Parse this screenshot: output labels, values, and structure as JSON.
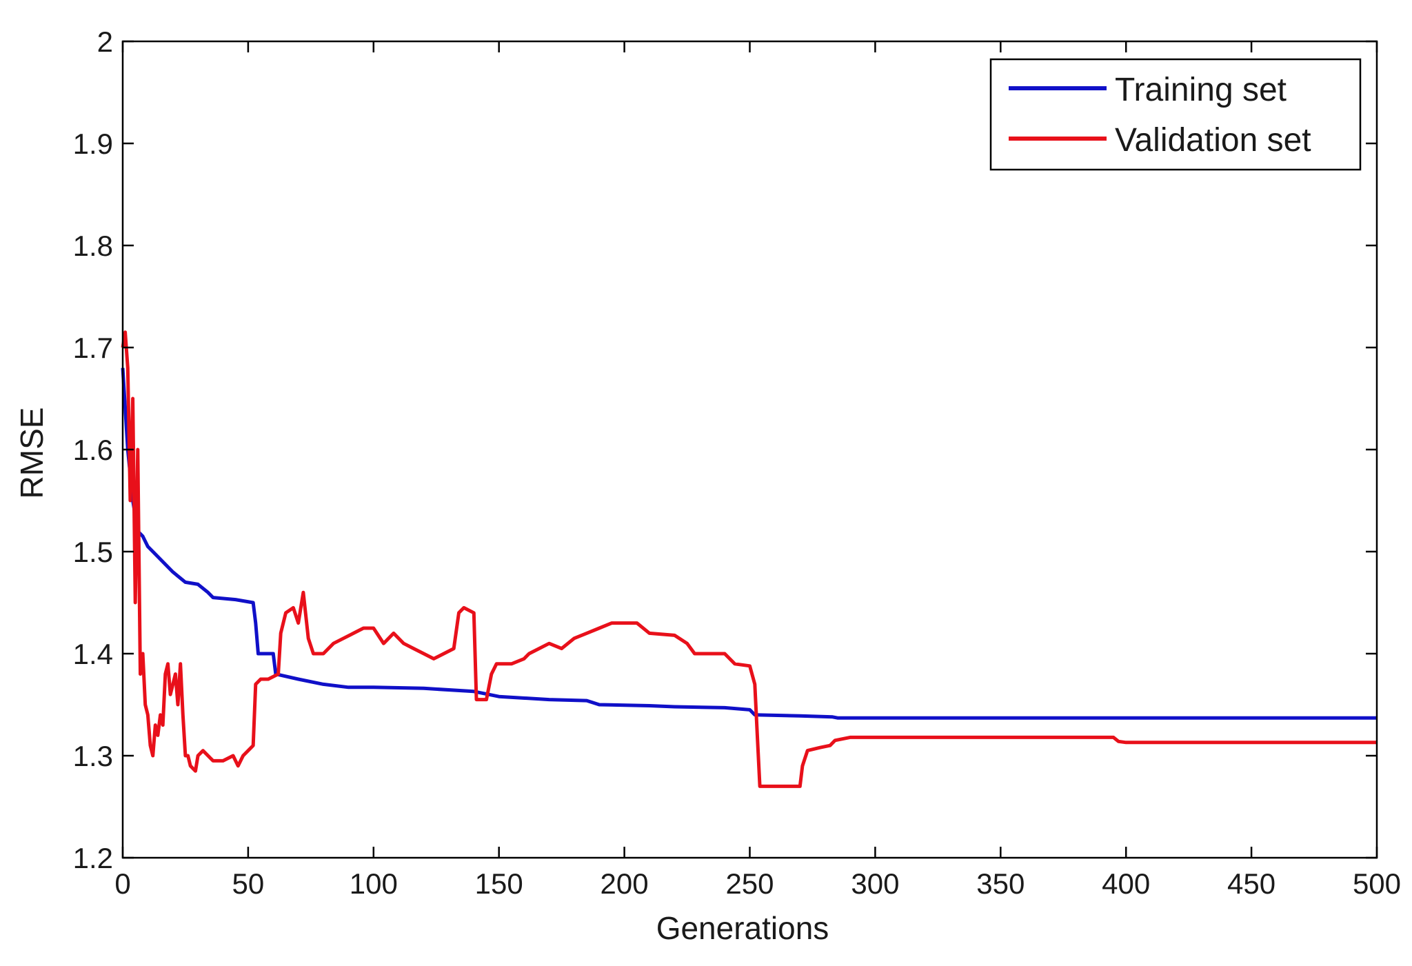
{
  "chart_data": {
    "type": "line",
    "title": "",
    "xlabel": "Generations",
    "ylabel": "RMSE",
    "xlim": [
      0,
      500
    ],
    "ylim": [
      1.2,
      2.0
    ],
    "xticks": [
      0,
      50,
      100,
      150,
      200,
      250,
      300,
      350,
      400,
      450,
      500
    ],
    "xtick_labels": [
      "0",
      "50",
      "100",
      "150",
      "200",
      "250",
      "300",
      "350",
      "400",
      "450",
      "500"
    ],
    "yticks": [
      1.2,
      1.3,
      1.4,
      1.5,
      1.6,
      1.7,
      1.8,
      1.9,
      2.0
    ],
    "ytick_labels": [
      "1.2",
      "1.3",
      "1.4",
      "1.5",
      "1.6",
      "1.7",
      "1.8",
      "1.9",
      "2"
    ],
    "grid": false,
    "legend_position": "top-right",
    "series": [
      {
        "name": "Training set",
        "color": "#1010c8",
        "points": [
          [
            0,
            1.68
          ],
          [
            2,
            1.6
          ],
          [
            4,
            1.55
          ],
          [
            6,
            1.52
          ],
          [
            8,
            1.515
          ],
          [
            10,
            1.505
          ],
          [
            12,
            1.5
          ],
          [
            16,
            1.49
          ],
          [
            20,
            1.48
          ],
          [
            25,
            1.47
          ],
          [
            30,
            1.468
          ],
          [
            34,
            1.46
          ],
          [
            36,
            1.455
          ],
          [
            45,
            1.453
          ],
          [
            52,
            1.45
          ],
          [
            53,
            1.43
          ],
          [
            54,
            1.4
          ],
          [
            60,
            1.4
          ],
          [
            61,
            1.38
          ],
          [
            70,
            1.375
          ],
          [
            80,
            1.37
          ],
          [
            90,
            1.367
          ],
          [
            100,
            1.367
          ],
          [
            120,
            1.366
          ],
          [
            140,
            1.363
          ],
          [
            150,
            1.358
          ],
          [
            170,
            1.355
          ],
          [
            185,
            1.354
          ],
          [
            190,
            1.35
          ],
          [
            210,
            1.349
          ],
          [
            220,
            1.348
          ],
          [
            240,
            1.347
          ],
          [
            250,
            1.345
          ],
          [
            252,
            1.34
          ],
          [
            270,
            1.339
          ],
          [
            283,
            1.338
          ],
          [
            285,
            1.337
          ],
          [
            400,
            1.337
          ],
          [
            500,
            1.337
          ]
        ]
      },
      {
        "name": "Validation set",
        "color": "#e8101a",
        "points": [
          [
            0,
            1.7
          ],
          [
            1,
            1.715
          ],
          [
            2,
            1.68
          ],
          [
            3,
            1.55
          ],
          [
            4,
            1.65
          ],
          [
            5,
            1.45
          ],
          [
            6,
            1.6
          ],
          [
            7,
            1.38
          ],
          [
            8,
            1.4
          ],
          [
            9,
            1.35
          ],
          [
            10,
            1.34
          ],
          [
            11,
            1.31
          ],
          [
            12,
            1.3
          ],
          [
            13,
            1.33
          ],
          [
            14,
            1.32
          ],
          [
            15,
            1.34
          ],
          [
            16,
            1.33
          ],
          [
            17,
            1.38
          ],
          [
            18,
            1.39
          ],
          [
            19,
            1.36
          ],
          [
            20,
            1.37
          ],
          [
            21,
            1.38
          ],
          [
            22,
            1.35
          ],
          [
            23,
            1.39
          ],
          [
            24,
            1.34
          ],
          [
            25,
            1.3
          ],
          [
            26,
            1.3
          ],
          [
            27,
            1.29
          ],
          [
            29,
            1.285
          ],
          [
            30,
            1.3
          ],
          [
            32,
            1.305
          ],
          [
            34,
            1.3
          ],
          [
            36,
            1.295
          ],
          [
            40,
            1.295
          ],
          [
            44,
            1.3
          ],
          [
            46,
            1.29
          ],
          [
            48,
            1.3
          ],
          [
            50,
            1.305
          ],
          [
            52,
            1.31
          ],
          [
            53,
            1.37
          ],
          [
            55,
            1.375
          ],
          [
            58,
            1.375
          ],
          [
            62,
            1.38
          ],
          [
            63,
            1.42
          ],
          [
            65,
            1.44
          ],
          [
            68,
            1.445
          ],
          [
            70,
            1.43
          ],
          [
            72,
            1.46
          ],
          [
            74,
            1.415
          ],
          [
            76,
            1.4
          ],
          [
            80,
            1.4
          ],
          [
            84,
            1.41
          ],
          [
            88,
            1.415
          ],
          [
            92,
            1.42
          ],
          [
            96,
            1.425
          ],
          [
            100,
            1.425
          ],
          [
            104,
            1.41
          ],
          [
            108,
            1.42
          ],
          [
            112,
            1.41
          ],
          [
            116,
            1.405
          ],
          [
            120,
            1.4
          ],
          [
            124,
            1.395
          ],
          [
            128,
            1.4
          ],
          [
            132,
            1.405
          ],
          [
            134,
            1.44
          ],
          [
            136,
            1.445
          ],
          [
            140,
            1.44
          ],
          [
            141,
            1.355
          ],
          [
            145,
            1.355
          ],
          [
            147,
            1.38
          ],
          [
            149,
            1.39
          ],
          [
            155,
            1.39
          ],
          [
            160,
            1.395
          ],
          [
            162,
            1.4
          ],
          [
            166,
            1.405
          ],
          [
            170,
            1.41
          ],
          [
            175,
            1.405
          ],
          [
            180,
            1.415
          ],
          [
            185,
            1.42
          ],
          [
            190,
            1.425
          ],
          [
            195,
            1.43
          ],
          [
            205,
            1.43
          ],
          [
            210,
            1.42
          ],
          [
            220,
            1.418
          ],
          [
            225,
            1.41
          ],
          [
            228,
            1.4
          ],
          [
            240,
            1.4
          ],
          [
            244,
            1.39
          ],
          [
            250,
            1.388
          ],
          [
            252,
            1.37
          ],
          [
            253,
            1.32
          ],
          [
            254,
            1.27
          ],
          [
            260,
            1.27
          ],
          [
            270,
            1.27
          ],
          [
            271,
            1.29
          ],
          [
            273,
            1.305
          ],
          [
            278,
            1.308
          ],
          [
            282,
            1.31
          ],
          [
            284,
            1.315
          ],
          [
            290,
            1.318
          ],
          [
            300,
            1.318
          ],
          [
            395,
            1.318
          ],
          [
            397,
            1.314
          ],
          [
            400,
            1.313
          ],
          [
            500,
            1.313
          ]
        ]
      }
    ]
  },
  "legend": {
    "items": [
      {
        "label": "Training set",
        "color": "#1010c8"
      },
      {
        "label": "Validation set",
        "color": "#e8101a"
      }
    ]
  }
}
